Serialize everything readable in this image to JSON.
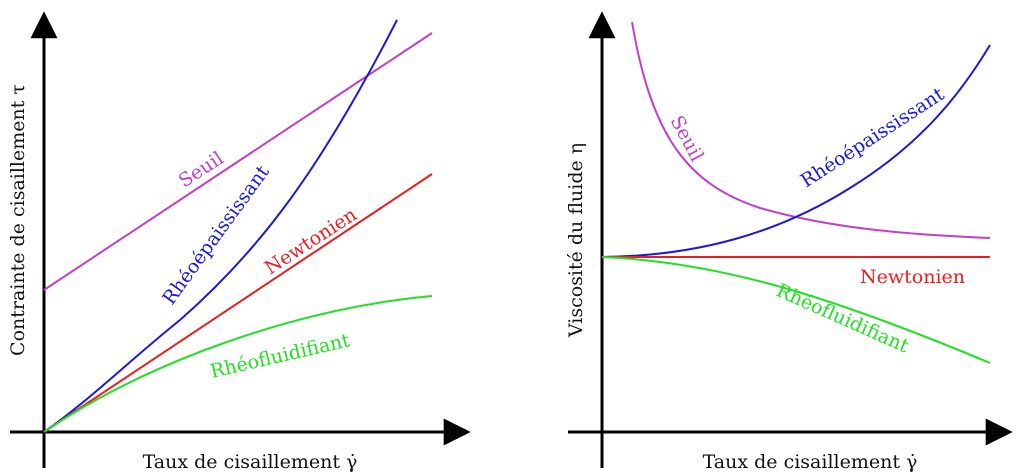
{
  "left_panel": {
    "xlabel": "Taux de cisaillement γ̇",
    "ylabel": "Contrainte de cisaillement τ",
    "curves": {
      "seuil": "Seuil",
      "rheoepaississant": "Rhéoépaississant",
      "newtonien": "Newtonien",
      "rheofluidifiant": "Rhéofluidifiant"
    }
  },
  "right_panel": {
    "xlabel": "Taux de cisaillement γ̇",
    "ylabel": "Viscosité du fluide η",
    "curves": {
      "seuil": "Seuil",
      "rheoepaississant": "Rhéoépaississant",
      "newtonien": "Newtonien",
      "rheofluidifiant": "Rhéofluidifiant"
    }
  },
  "colors": {
    "seuil": "#c040c8",
    "rheoepaississant": "#1a1ad8",
    "newtonien": "#ee1c1c",
    "rheofluidifiant": "#22e022",
    "axis": "#000000"
  }
}
